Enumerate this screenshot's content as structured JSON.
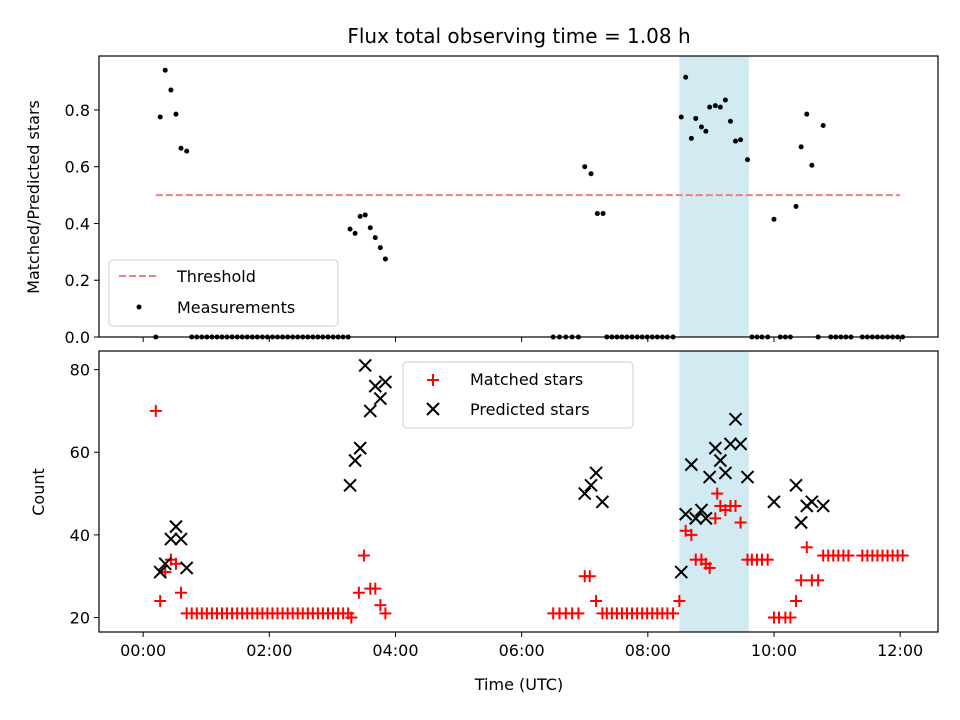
{
  "title": "Flux total observing time = 1.08 h",
  "colors": {
    "threshold": "#f08080",
    "measurement": "#000000",
    "matched": "#ff0000",
    "predicted": "#000000",
    "shade": "#add8e6"
  },
  "chart_data": [
    {
      "type": "scatter",
      "ylabel": "Matched/Predicted stars",
      "xlim": [
        -0.7,
        12.6
      ],
      "ylim": [
        0,
        0.99
      ],
      "yticks": [
        0.0,
        0.2,
        0.4,
        0.6,
        0.8
      ],
      "ytick_labels": [
        "0.0",
        "0.2",
        "0.4",
        "0.6",
        "0.8"
      ],
      "shaded_span": [
        8.5,
        9.6
      ],
      "legend_position": "lower-left",
      "threshold": {
        "name": "Threshold",
        "value": 0.5,
        "x_range": [
          0.2,
          12.0
        ]
      },
      "series": [
        {
          "name": "Measurements",
          "points": [
            [
              0.2,
              0
            ],
            [
              0.27,
              0.775
            ],
            [
              0.35,
              0.94
            ],
            [
              0.44,
              0.87
            ],
            [
              0.52,
              0.785
            ],
            [
              0.6,
              0.665
            ],
            [
              0.69,
              0.655
            ],
            [
              0.77,
              0
            ],
            [
              0.85,
              0
            ],
            [
              0.93,
              0
            ],
            [
              1.01,
              0
            ],
            [
              1.09,
              0
            ],
            [
              1.17,
              0
            ],
            [
              1.25,
              0
            ],
            [
              1.33,
              0
            ],
            [
              1.41,
              0
            ],
            [
              1.49,
              0
            ],
            [
              1.57,
              0
            ],
            [
              1.65,
              0
            ],
            [
              1.73,
              0
            ],
            [
              1.81,
              0
            ],
            [
              1.89,
              0
            ],
            [
              1.97,
              0
            ],
            [
              2.05,
              0
            ],
            [
              2.13,
              0
            ],
            [
              2.21,
              0
            ],
            [
              2.29,
              0
            ],
            [
              2.37,
              0
            ],
            [
              2.45,
              0
            ],
            [
              2.53,
              0
            ],
            [
              2.61,
              0
            ],
            [
              2.69,
              0
            ],
            [
              2.77,
              0
            ],
            [
              2.85,
              0
            ],
            [
              2.93,
              0
            ],
            [
              3.01,
              0
            ],
            [
              3.09,
              0
            ],
            [
              3.17,
              0
            ],
            [
              3.25,
              0
            ],
            [
              3.28,
              0.38
            ],
            [
              3.36,
              0.365
            ],
            [
              3.44,
              0.425
            ],
            [
              3.52,
              0.43
            ],
            [
              3.6,
              0.385
            ],
            [
              3.68,
              0.35
            ],
            [
              3.76,
              0.315
            ],
            [
              3.84,
              0.275
            ],
            [
              6.5,
              0
            ],
            [
              6.6,
              0
            ],
            [
              6.7,
              0
            ],
            [
              6.8,
              0
            ],
            [
              6.9,
              0
            ],
            [
              7.0,
              0.6
            ],
            [
              7.1,
              0.575
            ],
            [
              7.2,
              0.435
            ],
            [
              7.29,
              0.435
            ],
            [
              7.35,
              0
            ],
            [
              7.43,
              0
            ],
            [
              7.51,
              0
            ],
            [
              7.59,
              0
            ],
            [
              7.67,
              0
            ],
            [
              7.75,
              0
            ],
            [
              7.83,
              0
            ],
            [
              7.91,
              0
            ],
            [
              7.99,
              0
            ],
            [
              8.07,
              0
            ],
            [
              8.15,
              0
            ],
            [
              8.23,
              0
            ],
            [
              8.31,
              0
            ],
            [
              8.4,
              0
            ],
            [
              8.53,
              0.775
            ],
            [
              8.6,
              0.915
            ],
            [
              8.69,
              0.7
            ],
            [
              8.76,
              0.77
            ],
            [
              8.85,
              0.74
            ],
            [
              8.92,
              0.725
            ],
            [
              8.98,
              0.81
            ],
            [
              9.07,
              0.815
            ],
            [
              9.15,
              0.81
            ],
            [
              9.23,
              0.835
            ],
            [
              9.31,
              0.76
            ],
            [
              9.39,
              0.69
            ],
            [
              9.47,
              0.695
            ],
            [
              9.58,
              0.625
            ],
            [
              9.65,
              0
            ],
            [
              9.73,
              0
            ],
            [
              9.81,
              0
            ],
            [
              9.9,
              0
            ],
            [
              10.0,
              0.415
            ],
            [
              10.1,
              0
            ],
            [
              10.18,
              0
            ],
            [
              10.26,
              0
            ],
            [
              10.35,
              0.46
            ],
            [
              10.43,
              0.67
            ],
            [
              10.52,
              0.785
            ],
            [
              10.6,
              0.605
            ],
            [
              10.7,
              0
            ],
            [
              10.78,
              0.745
            ],
            [
              10.9,
              0
            ],
            [
              10.98,
              0
            ],
            [
              11.06,
              0
            ],
            [
              11.14,
              0
            ],
            [
              11.22,
              0
            ],
            [
              11.4,
              0
            ],
            [
              11.48,
              0
            ],
            [
              11.56,
              0
            ],
            [
              11.64,
              0
            ],
            [
              11.72,
              0
            ],
            [
              11.8,
              0
            ],
            [
              11.88,
              0
            ],
            [
              11.96,
              0
            ],
            [
              12.04,
              0
            ]
          ]
        }
      ]
    },
    {
      "type": "scatter",
      "xlabel": "Time (UTC)",
      "ylabel": "Count",
      "xlim": [
        -0.7,
        12.6
      ],
      "ylim": [
        16.5,
        84.5
      ],
      "xticks": [
        0,
        2,
        4,
        6,
        8,
        10,
        12
      ],
      "xtick_labels": [
        "00:00",
        "02:00",
        "04:00",
        "06:00",
        "08:00",
        "10:00",
        "12:00"
      ],
      "yticks": [
        20,
        40,
        60,
        80
      ],
      "ytick_labels": [
        "20",
        "40",
        "60",
        "80"
      ],
      "shaded_span": [
        8.5,
        9.6
      ],
      "legend_position": "upper-center",
      "series": [
        {
          "name": "Matched stars",
          "marker": "plus",
          "points": [
            [
              0.2,
              70
            ],
            [
              0.27,
              24
            ],
            [
              0.35,
              31
            ],
            [
              0.44,
              34
            ],
            [
              0.52,
              33
            ],
            [
              0.6,
              26
            ],
            [
              0.69,
              21
            ],
            [
              0.77,
              21
            ],
            [
              0.85,
              21
            ],
            [
              0.93,
              21
            ],
            [
              1.01,
              21
            ],
            [
              1.09,
              21
            ],
            [
              1.17,
              21
            ],
            [
              1.25,
              21
            ],
            [
              1.33,
              21
            ],
            [
              1.41,
              21
            ],
            [
              1.49,
              21
            ],
            [
              1.57,
              21
            ],
            [
              1.65,
              21
            ],
            [
              1.73,
              21
            ],
            [
              1.81,
              21
            ],
            [
              1.89,
              21
            ],
            [
              1.97,
              21
            ],
            [
              2.05,
              21
            ],
            [
              2.13,
              21
            ],
            [
              2.21,
              21
            ],
            [
              2.29,
              21
            ],
            [
              2.37,
              21
            ],
            [
              2.45,
              21
            ],
            [
              2.53,
              21
            ],
            [
              2.61,
              21
            ],
            [
              2.69,
              21
            ],
            [
              2.77,
              21
            ],
            [
              2.85,
              21
            ],
            [
              2.93,
              21
            ],
            [
              3.01,
              21
            ],
            [
              3.09,
              21
            ],
            [
              3.17,
              21
            ],
            [
              3.25,
              21
            ],
            [
              3.3,
              20
            ],
            [
              3.42,
              26
            ],
            [
              3.5,
              35
            ],
            [
              3.6,
              27
            ],
            [
              3.68,
              27
            ],
            [
              3.76,
              23
            ],
            [
              3.84,
              21
            ],
            [
              6.5,
              21
            ],
            [
              6.6,
              21
            ],
            [
              6.7,
              21
            ],
            [
              6.8,
              21
            ],
            [
              6.9,
              21
            ],
            [
              7.0,
              30
            ],
            [
              7.08,
              30
            ],
            [
              7.18,
              24
            ],
            [
              7.28,
              21
            ],
            [
              7.35,
              21
            ],
            [
              7.43,
              21
            ],
            [
              7.51,
              21
            ],
            [
              7.59,
              21
            ],
            [
              7.67,
              21
            ],
            [
              7.75,
              21
            ],
            [
              7.83,
              21
            ],
            [
              7.91,
              21
            ],
            [
              7.99,
              21
            ],
            [
              8.07,
              21
            ],
            [
              8.15,
              21
            ],
            [
              8.23,
              21
            ],
            [
              8.31,
              21
            ],
            [
              8.4,
              21
            ],
            [
              8.5,
              24
            ],
            [
              8.6,
              41
            ],
            [
              8.69,
              40
            ],
            [
              8.76,
              34
            ],
            [
              8.85,
              34
            ],
            [
              8.92,
              33
            ],
            [
              8.98,
              32
            ],
            [
              9.07,
              44
            ],
            [
              9.1,
              50
            ],
            [
              9.15,
              47
            ],
            [
              9.23,
              46
            ],
            [
              9.31,
              47
            ],
            [
              9.39,
              47
            ],
            [
              9.47,
              43
            ],
            [
              9.58,
              34
            ],
            [
              9.65,
              34
            ],
            [
              9.73,
              34
            ],
            [
              9.81,
              34
            ],
            [
              9.9,
              34
            ],
            [
              10.0,
              20
            ],
            [
              10.08,
              20
            ],
            [
              10.18,
              20
            ],
            [
              10.26,
              20
            ],
            [
              10.35,
              24
            ],
            [
              10.43,
              29
            ],
            [
              10.52,
              37
            ],
            [
              10.6,
              29
            ],
            [
              10.7,
              29
            ],
            [
              10.78,
              35
            ],
            [
              10.86,
              35
            ],
            [
              10.94,
              35
            ],
            [
              11.02,
              35
            ],
            [
              11.1,
              35
            ],
            [
              11.18,
              35
            ],
            [
              11.4,
              35
            ],
            [
              11.48,
              35
            ],
            [
              11.56,
              35
            ],
            [
              11.64,
              35
            ],
            [
              11.72,
              35
            ],
            [
              11.8,
              35
            ],
            [
              11.88,
              35
            ],
            [
              11.96,
              35
            ],
            [
              12.04,
              35
            ]
          ]
        },
        {
          "name": "Predicted stars",
          "marker": "x",
          "points": [
            [
              0.27,
              31
            ],
            [
              0.35,
              33
            ],
            [
              0.44,
              39
            ],
            [
              0.52,
              42
            ],
            [
              0.6,
              39
            ],
            [
              0.69,
              32
            ],
            [
              3.28,
              52
            ],
            [
              3.36,
              58
            ],
            [
              3.44,
              61
            ],
            [
              3.52,
              81
            ],
            [
              3.6,
              70
            ],
            [
              3.68,
              76
            ],
            [
              3.76,
              73
            ],
            [
              3.84,
              77
            ],
            [
              7.0,
              50
            ],
            [
              7.1,
              52
            ],
            [
              7.18,
              55
            ],
            [
              7.28,
              48
            ],
            [
              8.53,
              31
            ],
            [
              8.6,
              45
            ],
            [
              8.69,
              57
            ],
            [
              8.76,
              44
            ],
            [
              8.85,
              46
            ],
            [
              8.92,
              44
            ],
            [
              8.98,
              54
            ],
            [
              9.07,
              61
            ],
            [
              9.15,
              58
            ],
            [
              9.23,
              55
            ],
            [
              9.31,
              62
            ],
            [
              9.39,
              68
            ],
            [
              9.47,
              62
            ],
            [
              9.58,
              54
            ],
            [
              10.0,
              48
            ],
            [
              10.35,
              52
            ],
            [
              10.43,
              43
            ],
            [
              10.52,
              47
            ],
            [
              10.6,
              48
            ],
            [
              10.78,
              47
            ]
          ]
        }
      ]
    }
  ]
}
